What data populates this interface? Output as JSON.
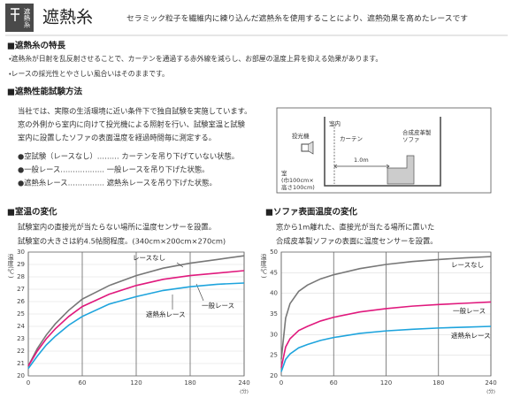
{
  "header": {
    "badge": "遮熱糸",
    "title": "遮熱糸",
    "description": "セラミック粒子を繊維内に練り込んだ遮熱糸を使用することにより、遮熱効果を高めたレースです"
  },
  "features": {
    "heading": "■遮熱糸の特長",
    "items": [
      "・遮熱糸が日射を乱反射させることで、カーテンを通過する赤外線を減らし、お部屋の温度上昇を抑える効果があります。",
      "・レースの採光性とやさしい風合いはそのままです。"
    ]
  },
  "test_method": {
    "heading": "■遮熱性能試験方法",
    "paragraph": [
      "当社では、実際の生活環境に近い条件下で独自試験を実施しています。",
      "窓の外側から室内に向けて投光機による照射を行い、試験室温と試験",
      "室内に設置したソファの表面温度を経過時間毎に測定する。"
    ],
    "conditions": [
      "●空試験（レースなし）……… カーテンを吊り下げていない状態。",
      "●一般レース……………… 一般レースを吊り下げた状態。",
      "●遮熱糸レース…………… 遮熱糸レースを吊り下げた状態。"
    ],
    "diagram": {
      "room": "室内",
      "lamp": "投光機",
      "curtain": "カーテン",
      "sofa": [
        "合成皮革製",
        "ソファ"
      ],
      "distance": "1.0m",
      "size": [
        "室",
        "(巾100cm×",
        "高さ100cm)"
      ]
    }
  },
  "chart_data": [
    {
      "type": "line",
      "title": "■室温の変化",
      "description": [
        "試験室内の直接光が当たらない場所に温度センサーを設置。",
        "試験室の大きさは約4.5帖間程度。(340cm×200cm×270cm)"
      ],
      "y_label": "温度(℃)",
      "x_unit": "(分)",
      "x": [
        0,
        5,
        10,
        20,
        30,
        45,
        60,
        90,
        120,
        150,
        180,
        210,
        240
      ],
      "xlim": [
        0,
        240
      ],
      "xticks": [
        0,
        60,
        120,
        180,
        240
      ],
      "ylim": [
        20,
        30
      ],
      "yticks": [
        20,
        21,
        22,
        23,
        24,
        25,
        26,
        27,
        28,
        29,
        30
      ],
      "series": [
        {
          "name": "レースなし",
          "color": "#777777",
          "values": [
            20.8,
            21.5,
            22.2,
            23.3,
            24.2,
            25.3,
            26.2,
            27.3,
            28.1,
            28.7,
            29.1,
            29.4,
            29.7
          ]
        },
        {
          "name": "一般レース",
          "color": "#e0197d",
          "values": [
            20.8,
            21.4,
            22.0,
            23.0,
            23.8,
            24.8,
            25.6,
            26.6,
            27.3,
            27.8,
            28.1,
            28.3,
            28.5
          ]
        },
        {
          "name": "遮熱糸レース",
          "color": "#1ea4dd",
          "values": [
            20.6,
            21.1,
            21.6,
            22.5,
            23.2,
            24.1,
            24.8,
            25.8,
            26.4,
            26.9,
            27.2,
            27.4,
            27.5
          ]
        }
      ]
    },
    {
      "type": "line",
      "title": "■ソファ表面温度の変化",
      "description": [
        "窓から1m離れた、直接光が当たる場所に置いた",
        "合成皮革製ソファの表面に温度センサーを設置。"
      ],
      "y_label": "温度(℃)",
      "x_unit": "(分)",
      "x": [
        0,
        5,
        10,
        20,
        30,
        45,
        60,
        90,
        120,
        150,
        180,
        210,
        240
      ],
      "xlim": [
        0,
        240
      ],
      "xticks": [
        0,
        60,
        120,
        180,
        240
      ],
      "ylim": [
        20,
        50
      ],
      "yticks": [
        20,
        25,
        30,
        35,
        40,
        45,
        50
      ],
      "series": [
        {
          "name": "レースなし",
          "color": "#777777",
          "values": [
            24,
            34,
            37.5,
            40.5,
            42,
            43.5,
            44.5,
            46,
            47,
            47.7,
            48.2,
            48.6,
            48.9
          ]
        },
        {
          "name": "一般レース",
          "color": "#e0197d",
          "values": [
            22,
            27,
            29,
            31,
            32,
            33.3,
            34.2,
            35.5,
            36.3,
            36.9,
            37.3,
            37.6,
            37.9
          ]
        },
        {
          "name": "遮熱糸レース",
          "color": "#1ea4dd",
          "values": [
            21,
            24,
            25.3,
            26.8,
            27.6,
            28.6,
            29.3,
            30.3,
            30.9,
            31.3,
            31.6,
            31.8,
            32.0
          ]
        }
      ]
    }
  ]
}
